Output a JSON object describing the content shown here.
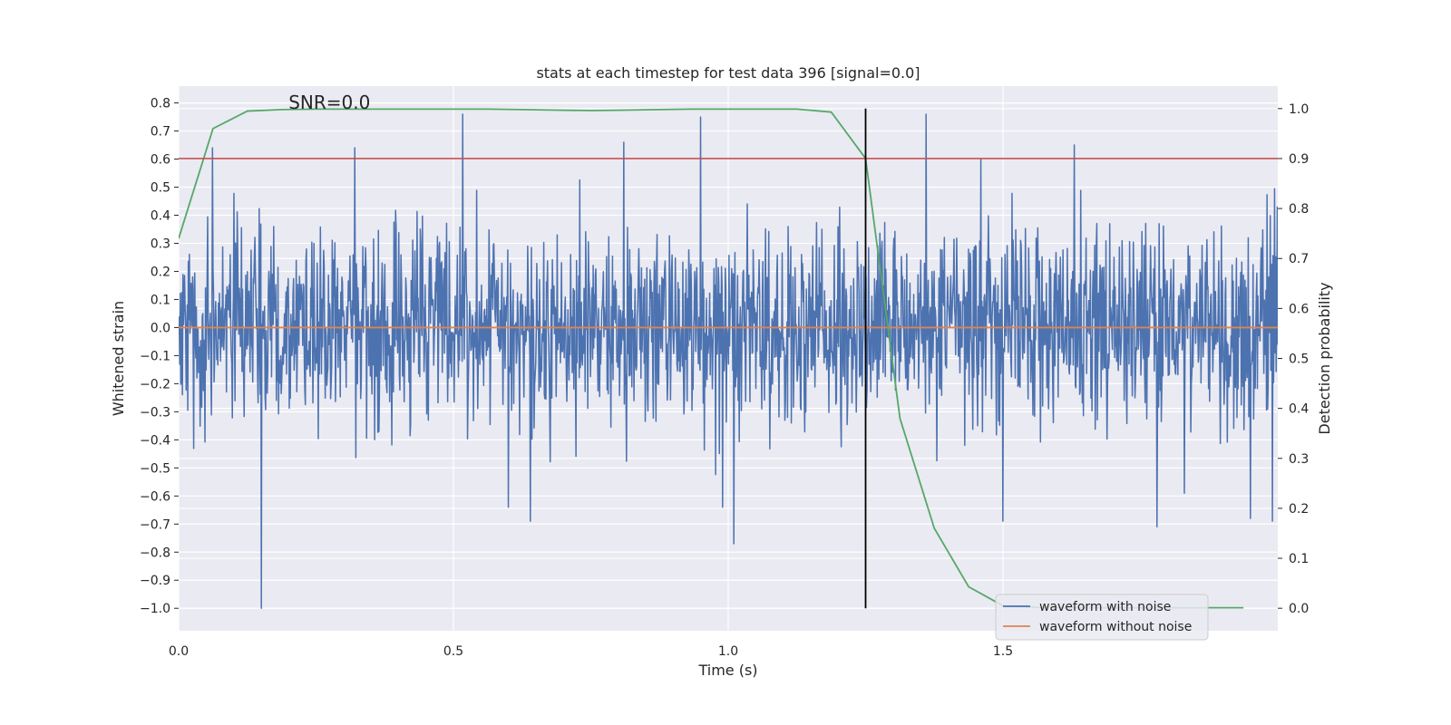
{
  "chart_data": {
    "type": "line",
    "title": "stats at each timestep for test data 396 [signal=0.0]",
    "xlabel": "Time (s)",
    "ylabel": "Whitened strain",
    "y2label": "Detection probability",
    "xlim": [
      0.0,
      2.0
    ],
    "ylim": [
      -1.08,
      0.86
    ],
    "y2lim": [
      -0.045,
      1.045
    ],
    "xticks": [
      "0.0",
      "0.5",
      "1.0",
      "1.5"
    ],
    "xtick_values": [
      0.0,
      0.5,
      1.0,
      1.5
    ],
    "yticks": [
      "0.8",
      "0.7",
      "0.6",
      "0.5",
      "0.4",
      "0.3",
      "0.2",
      "0.1",
      "0.0",
      "−0.1",
      "−0.2",
      "−0.3",
      "−0.4",
      "−0.5",
      "−0.6",
      "−0.7",
      "−0.8",
      "−0.9",
      "−1.0"
    ],
    "ytick_values": [
      0.8,
      0.7,
      0.6,
      0.5,
      0.4,
      0.3,
      0.2,
      0.1,
      0.0,
      -0.1,
      -0.2,
      -0.3,
      -0.4,
      -0.5,
      -0.6,
      -0.7,
      -0.8,
      -0.9,
      -1.0
    ],
    "y2ticks": [
      "1.0",
      "0.9",
      "0.8",
      "0.7",
      "0.6",
      "0.5",
      "0.4",
      "0.3",
      "0.2",
      "0.1",
      "0.0"
    ],
    "y2tick_values": [
      1.0,
      0.9,
      0.8,
      0.7,
      0.6,
      0.5,
      0.4,
      0.3,
      0.2,
      0.1,
      0.0
    ],
    "grid": true,
    "annotation": "SNR=0.0",
    "annotation_x": 0.2,
    "annotation_y": 0.78,
    "threshold_y2": 0.9,
    "vline_x": 1.25,
    "vline_y2_range": [
      0.0,
      1.0
    ],
    "series": [
      {
        "name": "waveform with noise",
        "color": "#4c72b0",
        "axis": "left",
        "kind": "noise",
        "samples": 2048,
        "seed": 396,
        "std": 0.2,
        "extremes": [
          {
            "x": 0.062,
            "y": 0.64
          },
          {
            "x": 0.15,
            "y": -1.0
          },
          {
            "x": 0.32,
            "y": 0.64
          },
          {
            "x": 0.517,
            "y": 0.76
          },
          {
            "x": 0.6,
            "y": -0.64
          },
          {
            "x": 0.64,
            "y": -0.69
          },
          {
            "x": 0.81,
            "y": 0.66
          },
          {
            "x": 0.95,
            "y": 0.75
          },
          {
            "x": 0.99,
            "y": -0.64
          },
          {
            "x": 1.01,
            "y": -0.77
          },
          {
            "x": 1.36,
            "y": 0.76
          },
          {
            "x": 1.46,
            "y": 0.6
          },
          {
            "x": 1.5,
            "y": -0.69
          },
          {
            "x": 1.63,
            "y": 0.65
          },
          {
            "x": 1.78,
            "y": -0.71
          },
          {
            "x": 1.83,
            "y": -0.59
          },
          {
            "x": 1.95,
            "y": -0.68
          },
          {
            "x": 1.99,
            "y": -0.69
          }
        ]
      },
      {
        "name": "waveform without noise",
        "color": "#dd8452",
        "axis": "left",
        "x": [
          0.0,
          2.0
        ],
        "values": [
          0.0,
          0.0
        ]
      },
      {
        "name": "detection probability",
        "color": "#55a868",
        "axis": "right",
        "x": [
          0.0,
          0.0625,
          0.125,
          0.1875,
          0.25,
          0.3125,
          0.375,
          0.4375,
          0.5,
          0.5625,
          0.625,
          0.6875,
          0.75,
          0.8125,
          0.875,
          0.9375,
          1.0,
          1.0625,
          1.125,
          1.1875,
          1.25,
          1.3125,
          1.375,
          1.4375,
          1.5,
          1.5625,
          1.625,
          1.6875,
          1.75,
          1.8125,
          1.875,
          1.9375
        ],
        "values": [
          0.74,
          0.96,
          0.995,
          0.998,
          0.999,
          0.999,
          0.999,
          0.999,
          0.999,
          0.999,
          0.998,
          0.997,
          0.996,
          0.997,
          0.998,
          0.999,
          0.999,
          0.999,
          0.999,
          0.993,
          0.9,
          0.38,
          0.16,
          0.043,
          0.005,
          0.002,
          0.001,
          0.001,
          0.001,
          0.001,
          0.001,
          0.001
        ]
      },
      {
        "name": "threshold",
        "color": "#c44e52",
        "axis": "right",
        "x": [
          0.0,
          2.0
        ],
        "values": [
          0.9,
          0.9
        ]
      }
    ],
    "legend": {
      "position": "lower-right",
      "entries": [
        {
          "label": "waveform with noise",
          "color": "#4c72b0"
        },
        {
          "label": "waveform without noise",
          "color": "#dd8452"
        }
      ]
    }
  }
}
